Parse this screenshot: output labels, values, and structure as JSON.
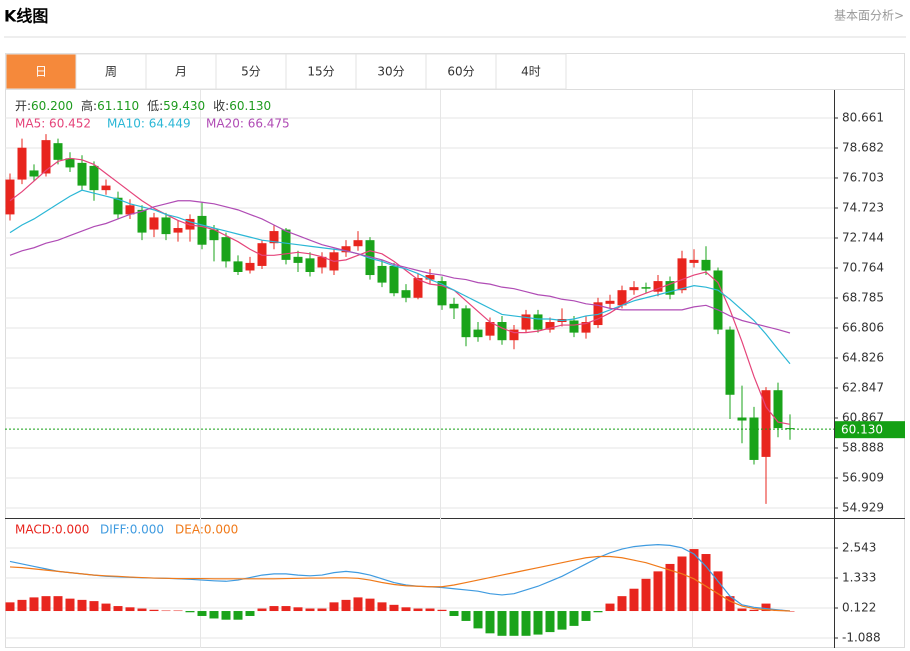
{
  "header": {
    "title": "K线图",
    "link": "基本面分析>"
  },
  "tabs": [
    "日",
    "周",
    "月",
    "5分",
    "15分",
    "30分",
    "60分",
    "4时"
  ],
  "active_tab_index": 0,
  "chart_data": [
    {
      "type": "candlestick",
      "up_color": "#e8251e",
      "down_color": "#1aa31a",
      "info": [
        {
          "label": "开:",
          "value": "60.200"
        },
        {
          "label": "高:",
          "value": "61.110"
        },
        {
          "label": "低:",
          "value": "59.430"
        },
        {
          "label": "收:",
          "value": "60.130"
        }
      ],
      "info_value_color": "#1e9b1e",
      "open": [
        74.3,
        76.6,
        77.2,
        77.0,
        79.0,
        78.0,
        77.7,
        77.5,
        75.9,
        75.4,
        74.3,
        74.6,
        73.3,
        74.1,
        73.1,
        73.3,
        74.2,
        73.3,
        72.8,
        71.2,
        70.6,
        70.9,
        72.4,
        73.3,
        71.5,
        71.4,
        70.8,
        70.6,
        71.8,
        72.2,
        72.6,
        70.9,
        70.9,
        69.3,
        68.8,
        70.0,
        69.9,
        68.4,
        68.1,
        66.7,
        66.3,
        67.2,
        66.0,
        66.7,
        67.7,
        66.7,
        67.2,
        67.3,
        66.5,
        67.0,
        68.4,
        68.3,
        69.3,
        69.5,
        69.2,
        69.9,
        69.3,
        71.1,
        71.3,
        70.6,
        66.7,
        60.9,
        60.9,
        58.3,
        62.7,
        60.2
      ],
      "close": [
        76.6,
        78.7,
        76.8,
        79.2,
        77.9,
        77.4,
        76.2,
        75.9,
        76.2,
        74.3,
        74.9,
        73.1,
        74.1,
        73.0,
        73.4,
        74.0,
        72.3,
        72.6,
        71.2,
        70.5,
        71.1,
        72.4,
        73.2,
        71.3,
        71.1,
        70.5,
        71.5,
        71.8,
        72.2,
        72.6,
        70.3,
        69.8,
        69.1,
        68.8,
        70.1,
        70.3,
        68.3,
        68.1,
        66.2,
        66.2,
        67.2,
        66.0,
        66.7,
        67.7,
        66.7,
        67.2,
        67.4,
        66.5,
        67.2,
        68.5,
        68.6,
        69.3,
        69.5,
        69.4,
        69.9,
        69.0,
        71.4,
        71.3,
        70.6,
        66.7,
        62.4,
        60.7,
        58.1,
        62.7,
        60.2,
        60.13
      ],
      "high": [
        77.0,
        79.3,
        77.6,
        79.6,
        79.3,
        78.4,
        78.2,
        77.8,
        76.6,
        75.8,
        75.3,
        74.9,
        74.4,
        74.4,
        73.9,
        74.3,
        75.1,
        73.6,
        73.1,
        71.6,
        71.5,
        72.6,
        73.6,
        73.4,
        71.9,
        71.8,
        71.8,
        72.0,
        72.6,
        73.2,
        72.8,
        71.3,
        71.1,
        69.7,
        70.4,
        70.7,
        70.2,
        68.8,
        68.3,
        67.2,
        67.5,
        67.6,
        67.0,
        68.0,
        68.0,
        67.5,
        68.1,
        67.6,
        67.6,
        68.8,
        69.0,
        69.6,
        69.9,
        69.8,
        70.3,
        70.2,
        71.9,
        72.0,
        72.2,
        70.8,
        66.9,
        63.0,
        61.6,
        62.9,
        63.2,
        61.11
      ],
      "low": [
        73.9,
        76.3,
        76.5,
        76.8,
        77.6,
        77.1,
        75.9,
        75.2,
        75.6,
        74.0,
        74.0,
        72.6,
        72.8,
        72.6,
        72.5,
        72.5,
        72.0,
        71.2,
        70.8,
        70.3,
        70.4,
        70.7,
        72.0,
        71.0,
        70.5,
        70.2,
        70.4,
        70.3,
        71.5,
        71.9,
        70.0,
        69.5,
        68.9,
        68.5,
        68.7,
        69.7,
        68.0,
        67.4,
        65.6,
        65.9,
        66.0,
        65.7,
        65.4,
        66.5,
        66.5,
        66.5,
        66.9,
        66.2,
        66.1,
        66.8,
        68.1,
        68.1,
        69.0,
        69.1,
        68.9,
        68.7,
        69.1,
        70.8,
        70.3,
        66.4,
        60.8,
        59.2,
        57.8,
        55.2,
        59.6,
        59.43
      ],
      "series": [
        {
          "name": "MA5: 60.452",
          "color": "#e5447a",
          "values": [
            75.2,
            75.8,
            76.5,
            77.2,
            77.8,
            78.0,
            77.9,
            77.6,
            77.0,
            76.4,
            75.8,
            75.2,
            74.7,
            74.3,
            73.9,
            73.6,
            73.5,
            73.3,
            72.9,
            72.5,
            72.0,
            71.6,
            71.6,
            71.7,
            71.8,
            71.7,
            71.5,
            71.2,
            71.3,
            71.6,
            71.9,
            71.7,
            71.2,
            70.6,
            70.0,
            69.7,
            69.6,
            69.3,
            68.6,
            67.9,
            67.2,
            66.8,
            66.5,
            66.5,
            66.6,
            66.8,
            67.0,
            67.0,
            67.1,
            67.4,
            67.8,
            68.3,
            68.8,
            69.1,
            69.4,
            69.7,
            70.0,
            70.3,
            70.5,
            69.8,
            68.0,
            65.9,
            63.6,
            61.6,
            60.6,
            60.452
          ]
        },
        {
          "name": "MA10: 64.449",
          "color": "#2bb7d6",
          "values": [
            73.1,
            73.6,
            74.0,
            74.5,
            75.0,
            75.5,
            75.9,
            75.7,
            75.5,
            75.3,
            75.0,
            74.8,
            74.6,
            74.3,
            74.1,
            73.8,
            73.6,
            73.4,
            73.2,
            73.0,
            72.8,
            72.6,
            72.5,
            72.4,
            72.3,
            72.2,
            72.1,
            72.0,
            71.9,
            71.7,
            71.4,
            71.2,
            70.9,
            70.7,
            70.4,
            70.0,
            69.7,
            69.3,
            68.9,
            68.5,
            68.1,
            67.7,
            67.6,
            67.5,
            67.4,
            67.4,
            67.3,
            67.4,
            67.6,
            67.7,
            68.0,
            68.3,
            68.6,
            68.8,
            69.0,
            69.2,
            69.4,
            69.6,
            69.5,
            69.3,
            68.7,
            68.0,
            67.3,
            66.4,
            65.4,
            64.449
          ]
        },
        {
          "name": "MA20: 66.475",
          "color": "#b04cb5",
          "values": [
            71.6,
            71.9,
            72.1,
            72.4,
            72.6,
            72.9,
            73.2,
            73.5,
            73.7,
            74.0,
            74.3,
            74.5,
            74.8,
            75.0,
            75.2,
            75.2,
            75.1,
            75.0,
            74.8,
            74.6,
            74.3,
            74.0,
            73.6,
            73.2,
            72.9,
            72.6,
            72.3,
            72.1,
            71.9,
            71.7,
            71.5,
            71.3,
            71.0,
            70.8,
            70.6,
            70.4,
            70.3,
            70.1,
            70.0,
            69.8,
            69.7,
            69.5,
            69.4,
            69.2,
            69.0,
            68.9,
            68.7,
            68.6,
            68.4,
            68.3,
            68.1,
            68.0,
            68.0,
            68.0,
            68.0,
            68.0,
            68.0,
            68.2,
            68.3,
            68.0,
            67.6,
            67.3,
            67.1,
            66.9,
            66.7,
            66.475
          ]
        }
      ],
      "last_price": {
        "value": 60.13,
        "label": "60.130",
        "color": "#14a014"
      },
      "ylim": [
        54.401,
        82.376
      ],
      "yticks": [
        80.661,
        78.682,
        76.703,
        74.723,
        72.744,
        70.764,
        68.785,
        66.806,
        64.826,
        62.847,
        60.867,
        58.888,
        56.909,
        54.929
      ],
      "grid": true
    },
    {
      "type": "macd",
      "bars": {
        "name": "MACD:0.000",
        "up_color": "#e8251e",
        "down_color": "#1aa31a",
        "values": [
          0.35,
          0.45,
          0.55,
          0.6,
          0.6,
          0.5,
          0.45,
          0.4,
          0.3,
          0.2,
          0.15,
          0.1,
          0.05,
          0.02,
          0.02,
          -0.05,
          -0.2,
          -0.3,
          -0.35,
          -0.35,
          -0.2,
          0.1,
          0.2,
          0.2,
          0.15,
          0.1,
          0.1,
          0.35,
          0.45,
          0.55,
          0.5,
          0.35,
          0.25,
          0.15,
          0.1,
          0.1,
          0.05,
          -0.2,
          -0.4,
          -0.7,
          -0.9,
          -1.0,
          -1.0,
          -1.0,
          -0.95,
          -0.85,
          -0.75,
          -0.6,
          -0.4,
          -0.05,
          0.3,
          0.6,
          0.9,
          1.3,
          1.6,
          1.9,
          2.2,
          2.5,
          2.3,
          1.6,
          0.6,
          0.1,
          0.05,
          0.3,
          0.05,
          0.0
        ]
      },
      "series": [
        {
          "name": "DIFF:0.000",
          "color": "#3f9be0",
          "values": [
            2.0,
            1.9,
            1.8,
            1.7,
            1.6,
            1.55,
            1.5,
            1.45,
            1.4,
            1.38,
            1.36,
            1.34,
            1.33,
            1.32,
            1.3,
            1.28,
            1.25,
            1.22,
            1.2,
            1.25,
            1.35,
            1.45,
            1.5,
            1.5,
            1.45,
            1.42,
            1.45,
            1.55,
            1.6,
            1.55,
            1.45,
            1.3,
            1.15,
            1.05,
            1.0,
            0.98,
            0.95,
            0.9,
            0.85,
            0.8,
            0.7,
            0.65,
            0.7,
            0.85,
            1.0,
            1.2,
            1.4,
            1.65,
            1.9,
            2.15,
            2.35,
            2.5,
            2.6,
            2.65,
            2.68,
            2.65,
            2.55,
            2.3,
            1.8,
            1.2,
            0.6,
            0.25,
            0.15,
            0.1,
            0.05,
            0.0
          ]
        },
        {
          "name": "DEA:0.000",
          "color": "#f07a1a",
          "values": [
            1.78,
            1.75,
            1.7,
            1.65,
            1.6,
            1.55,
            1.5,
            1.45,
            1.42,
            1.4,
            1.37,
            1.35,
            1.33,
            1.32,
            1.31,
            1.31,
            1.31,
            1.3,
            1.3,
            1.3,
            1.3,
            1.3,
            1.3,
            1.31,
            1.32,
            1.33,
            1.33,
            1.34,
            1.34,
            1.32,
            1.25,
            1.15,
            1.07,
            1.02,
            1.0,
            0.98,
            0.98,
            1.05,
            1.15,
            1.25,
            1.35,
            1.45,
            1.55,
            1.65,
            1.75,
            1.85,
            1.95,
            2.05,
            2.15,
            2.2,
            2.2,
            2.15,
            2.05,
            1.95,
            1.8,
            1.65,
            1.5,
            1.3,
            1.0,
            0.7,
            0.4,
            0.2,
            0.1,
            0.05,
            0.02,
            0.0
          ]
        }
      ],
      "ylim": [
        -1.492,
        3.673
      ],
      "yticks": [
        2.543,
        1.333,
        0.122,
        -1.088
      ],
      "grid": true
    }
  ]
}
